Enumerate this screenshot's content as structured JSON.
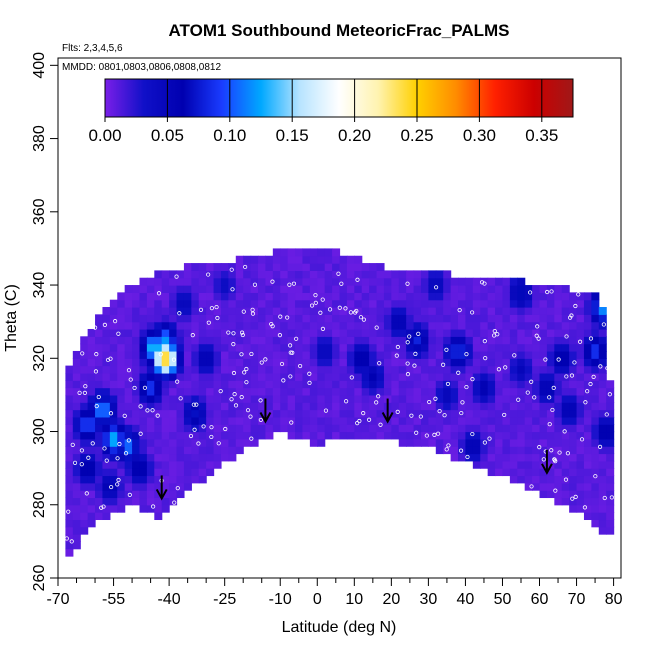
{
  "chart_data": {
    "type": "heatmap",
    "title": "ATOM1 Southbound MeteoricFrac_PALMS",
    "subtitle_flights": "Flts: 2,3,4,5,6",
    "subtitle_dates": "MMDD: 0801,0803,0806,0808,0812",
    "xlabel": "Latitude (deg N)",
    "ylabel": "Theta (C)",
    "xlim": [
      -70,
      82
    ],
    "ylim": [
      260,
      402
    ],
    "x_ticks": [
      -70,
      -55,
      -40,
      -25,
      -10,
      0,
      10,
      20,
      30,
      40,
      50,
      60,
      70,
      80
    ],
    "x_minor_ticks": [
      -65,
      -60,
      -50,
      -45,
      -35,
      -30,
      -20,
      -15,
      -5,
      5,
      15,
      25,
      35,
      45,
      55,
      65,
      75
    ],
    "y_ticks": [
      260,
      280,
      300,
      320,
      340,
      360,
      380,
      400
    ],
    "colorbar": {
      "range": [
        0,
        0.375
      ],
      "ticks": [
        0.0,
        0.05,
        0.1,
        0.15,
        0.2,
        0.25,
        0.3,
        0.35
      ],
      "tick_labels": [
        "0.00",
        "0.05",
        "0.10",
        "0.15",
        "0.20",
        "0.25",
        "0.30",
        "0.35"
      ],
      "colors": [
        "#7a1fe8",
        "#1010c8",
        "#0000b0",
        "#1a3cff",
        "#00a8ff",
        "#b8e4ff",
        "#ffffff",
        "#fff3b0",
        "#ffd000",
        "#ff8c00",
        "#ff2000",
        "#cc0000",
        "#a01818"
      ]
    },
    "coverage_top": [
      [
        -68,
        316
      ],
      [
        -60,
        330
      ],
      [
        -50,
        340
      ],
      [
        -40,
        344
      ],
      [
        -30,
        345
      ],
      [
        -20,
        347
      ],
      [
        -10,
        349
      ],
      [
        0,
        350
      ],
      [
        10,
        347
      ],
      [
        20,
        344
      ],
      [
        30,
        343
      ],
      [
        40,
        342
      ],
      [
        50,
        341
      ],
      [
        60,
        340
      ],
      [
        70,
        338
      ],
      [
        76,
        337
      ],
      [
        78,
        330
      ],
      [
        80,
        296
      ],
      [
        81,
        272
      ]
    ],
    "coverage_bottom": [
      [
        -68,
        265
      ],
      [
        -60,
        276
      ],
      [
        -50,
        280
      ],
      [
        -42,
        277
      ],
      [
        -35,
        284
      ],
      [
        -25,
        292
      ],
      [
        -15,
        298
      ],
      [
        -10,
        300
      ],
      [
        -5,
        299
      ],
      [
        0,
        297
      ],
      [
        10,
        299
      ],
      [
        20,
        298
      ],
      [
        30,
        296
      ],
      [
        40,
        292
      ],
      [
        50,
        288
      ],
      [
        60,
        284
      ],
      [
        70,
        279
      ],
      [
        76,
        274
      ],
      [
        80,
        272
      ]
    ],
    "blobs": [
      {
        "lat": -62,
        "theta": 302,
        "value": 0.1
      },
      {
        "lat": -58,
        "theta": 306,
        "value": 0.12
      },
      {
        "lat": -55,
        "theta": 298,
        "value": 0.13
      },
      {
        "lat": -51,
        "theta": 296,
        "value": 0.11
      },
      {
        "lat": -62,
        "theta": 290,
        "value": 0.07
      },
      {
        "lat": -56,
        "theta": 285,
        "value": 0.06
      },
      {
        "lat": -48,
        "theta": 290,
        "value": 0.07
      },
      {
        "lat": -44,
        "theta": 323,
        "value": 0.14
      },
      {
        "lat": -41,
        "theta": 325,
        "value": 0.12
      },
      {
        "lat": -45,
        "theta": 312,
        "value": 0.09
      },
      {
        "lat": -41,
        "theta": 320,
        "value": 0.25
      },
      {
        "lat": -33,
        "theta": 305,
        "value": 0.07
      },
      {
        "lat": -30,
        "theta": 320,
        "value": 0.06
      },
      {
        "lat": -36,
        "theta": 335,
        "value": 0.05
      },
      {
        "lat": -25,
        "theta": 340,
        "value": 0.04
      },
      {
        "lat": 2,
        "theta": 322,
        "value": 0.05
      },
      {
        "lat": 12,
        "theta": 320,
        "value": 0.07
      },
      {
        "lat": 15,
        "theta": 315,
        "value": 0.06
      },
      {
        "lat": 22,
        "theta": 330,
        "value": 0.06
      },
      {
        "lat": 27,
        "theta": 325,
        "value": 0.08
      },
      {
        "lat": 38,
        "theta": 322,
        "value": 0.09
      },
      {
        "lat": 45,
        "theta": 312,
        "value": 0.06
      },
      {
        "lat": 35,
        "theta": 310,
        "value": 0.05
      },
      {
        "lat": 42,
        "theta": 296,
        "value": 0.06
      },
      {
        "lat": 55,
        "theta": 317,
        "value": 0.05
      },
      {
        "lat": 62,
        "theta": 312,
        "value": 0.06
      },
      {
        "lat": 66,
        "theta": 320,
        "value": 0.07
      },
      {
        "lat": 68,
        "theta": 306,
        "value": 0.06
      },
      {
        "lat": 75,
        "theta": 322,
        "value": 0.09
      },
      {
        "lat": 77,
        "theta": 334,
        "value": 0.12
      },
      {
        "lat": 78,
        "theta": 300,
        "value": 0.07
      },
      {
        "lat": 55,
        "theta": 338,
        "value": 0.07
      },
      {
        "lat": 32,
        "theta": 340,
        "value": 0.05
      }
    ],
    "tropopause_arrows": [
      {
        "lat": -42,
        "theta": 282
      },
      {
        "lat": -14,
        "theta": 303
      },
      {
        "lat": 19,
        "theta": 303
      },
      {
        "lat": 62,
        "theta": 289
      }
    ]
  }
}
